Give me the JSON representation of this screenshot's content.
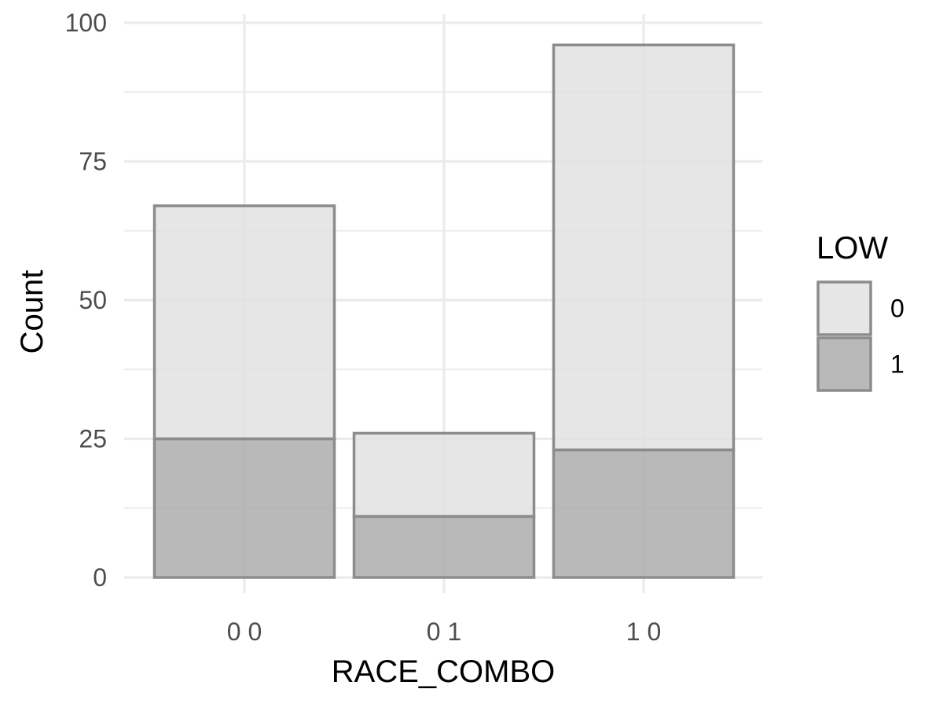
{
  "chart_data": {
    "type": "bar",
    "stacked": true,
    "categories": [
      "0 0",
      "0 1",
      "1 0"
    ],
    "series": [
      {
        "name": "0",
        "values": [
          42,
          15,
          73
        ],
        "color": "#e0e0e0"
      },
      {
        "name": "1",
        "values": [
          25,
          11,
          23
        ],
        "color": "#a9a9a9"
      }
    ],
    "totals": [
      67,
      26,
      96
    ],
    "bar_outline_color": "#8c8c8c",
    "title": "",
    "xlabel": "RACE_COMBO",
    "ylabel": "Count",
    "ylim": [
      0,
      100
    ],
    "yticks": [
      0,
      25,
      50,
      75,
      100
    ],
    "ytick_labels": [
      "0",
      "25",
      "50",
      "75",
      "100"
    ],
    "grid": true,
    "legend": {
      "title": "LOW",
      "position": "right",
      "entries": [
        "0",
        "1"
      ]
    }
  }
}
